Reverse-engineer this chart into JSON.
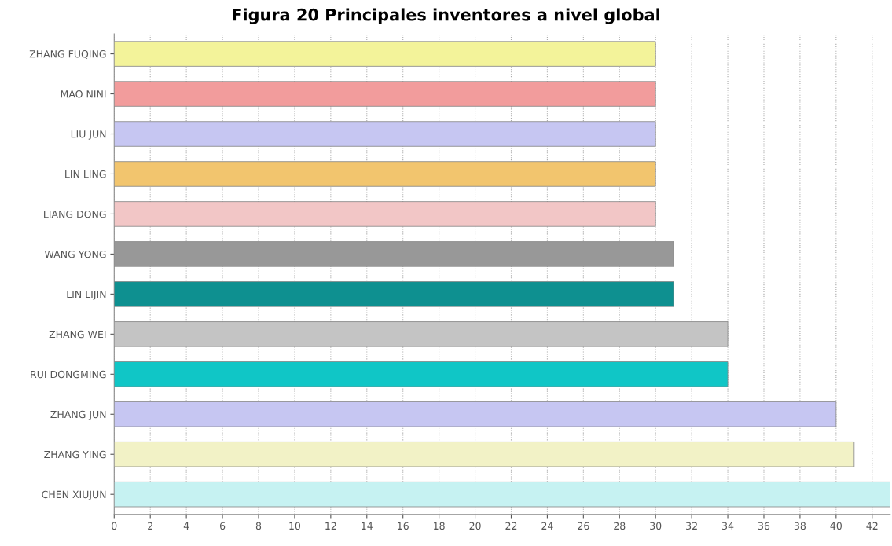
{
  "chart_data": {
    "type": "bar",
    "orientation": "horizontal",
    "title": "Figura 20 Principales inventores a nivel global",
    "categories": [
      "ZHANG FUQING",
      "MAO NINI",
      "LIU JUN",
      "LIN LING",
      "LIANG DONG",
      "WANG YONG",
      "LIN LIJIN",
      "ZHANG WEI",
      "RUI DONGMING",
      "ZHANG JUN",
      "ZHANG YING",
      "CHEN XIUJUN"
    ],
    "values": [
      30,
      30,
      30,
      30,
      30,
      31,
      31,
      34,
      34,
      40,
      41,
      43
    ],
    "colors": [
      "#f3f39a",
      "#f29c9c",
      "#c6c6f2",
      "#f2c56e",
      "#f2c6c6",
      "#989898",
      "#0e9090",
      "#c4c4c4",
      "#10c6c6",
      "#c6c6f2",
      "#f2f2c6",
      "#c6f2f2"
    ],
    "xlim": [
      0,
      43
    ],
    "xticks": [
      0,
      2,
      4,
      6,
      8,
      10,
      12,
      14,
      16,
      18,
      20,
      22,
      24,
      26,
      28,
      30,
      32,
      34,
      36,
      38,
      40,
      42
    ],
    "grid": "x"
  }
}
